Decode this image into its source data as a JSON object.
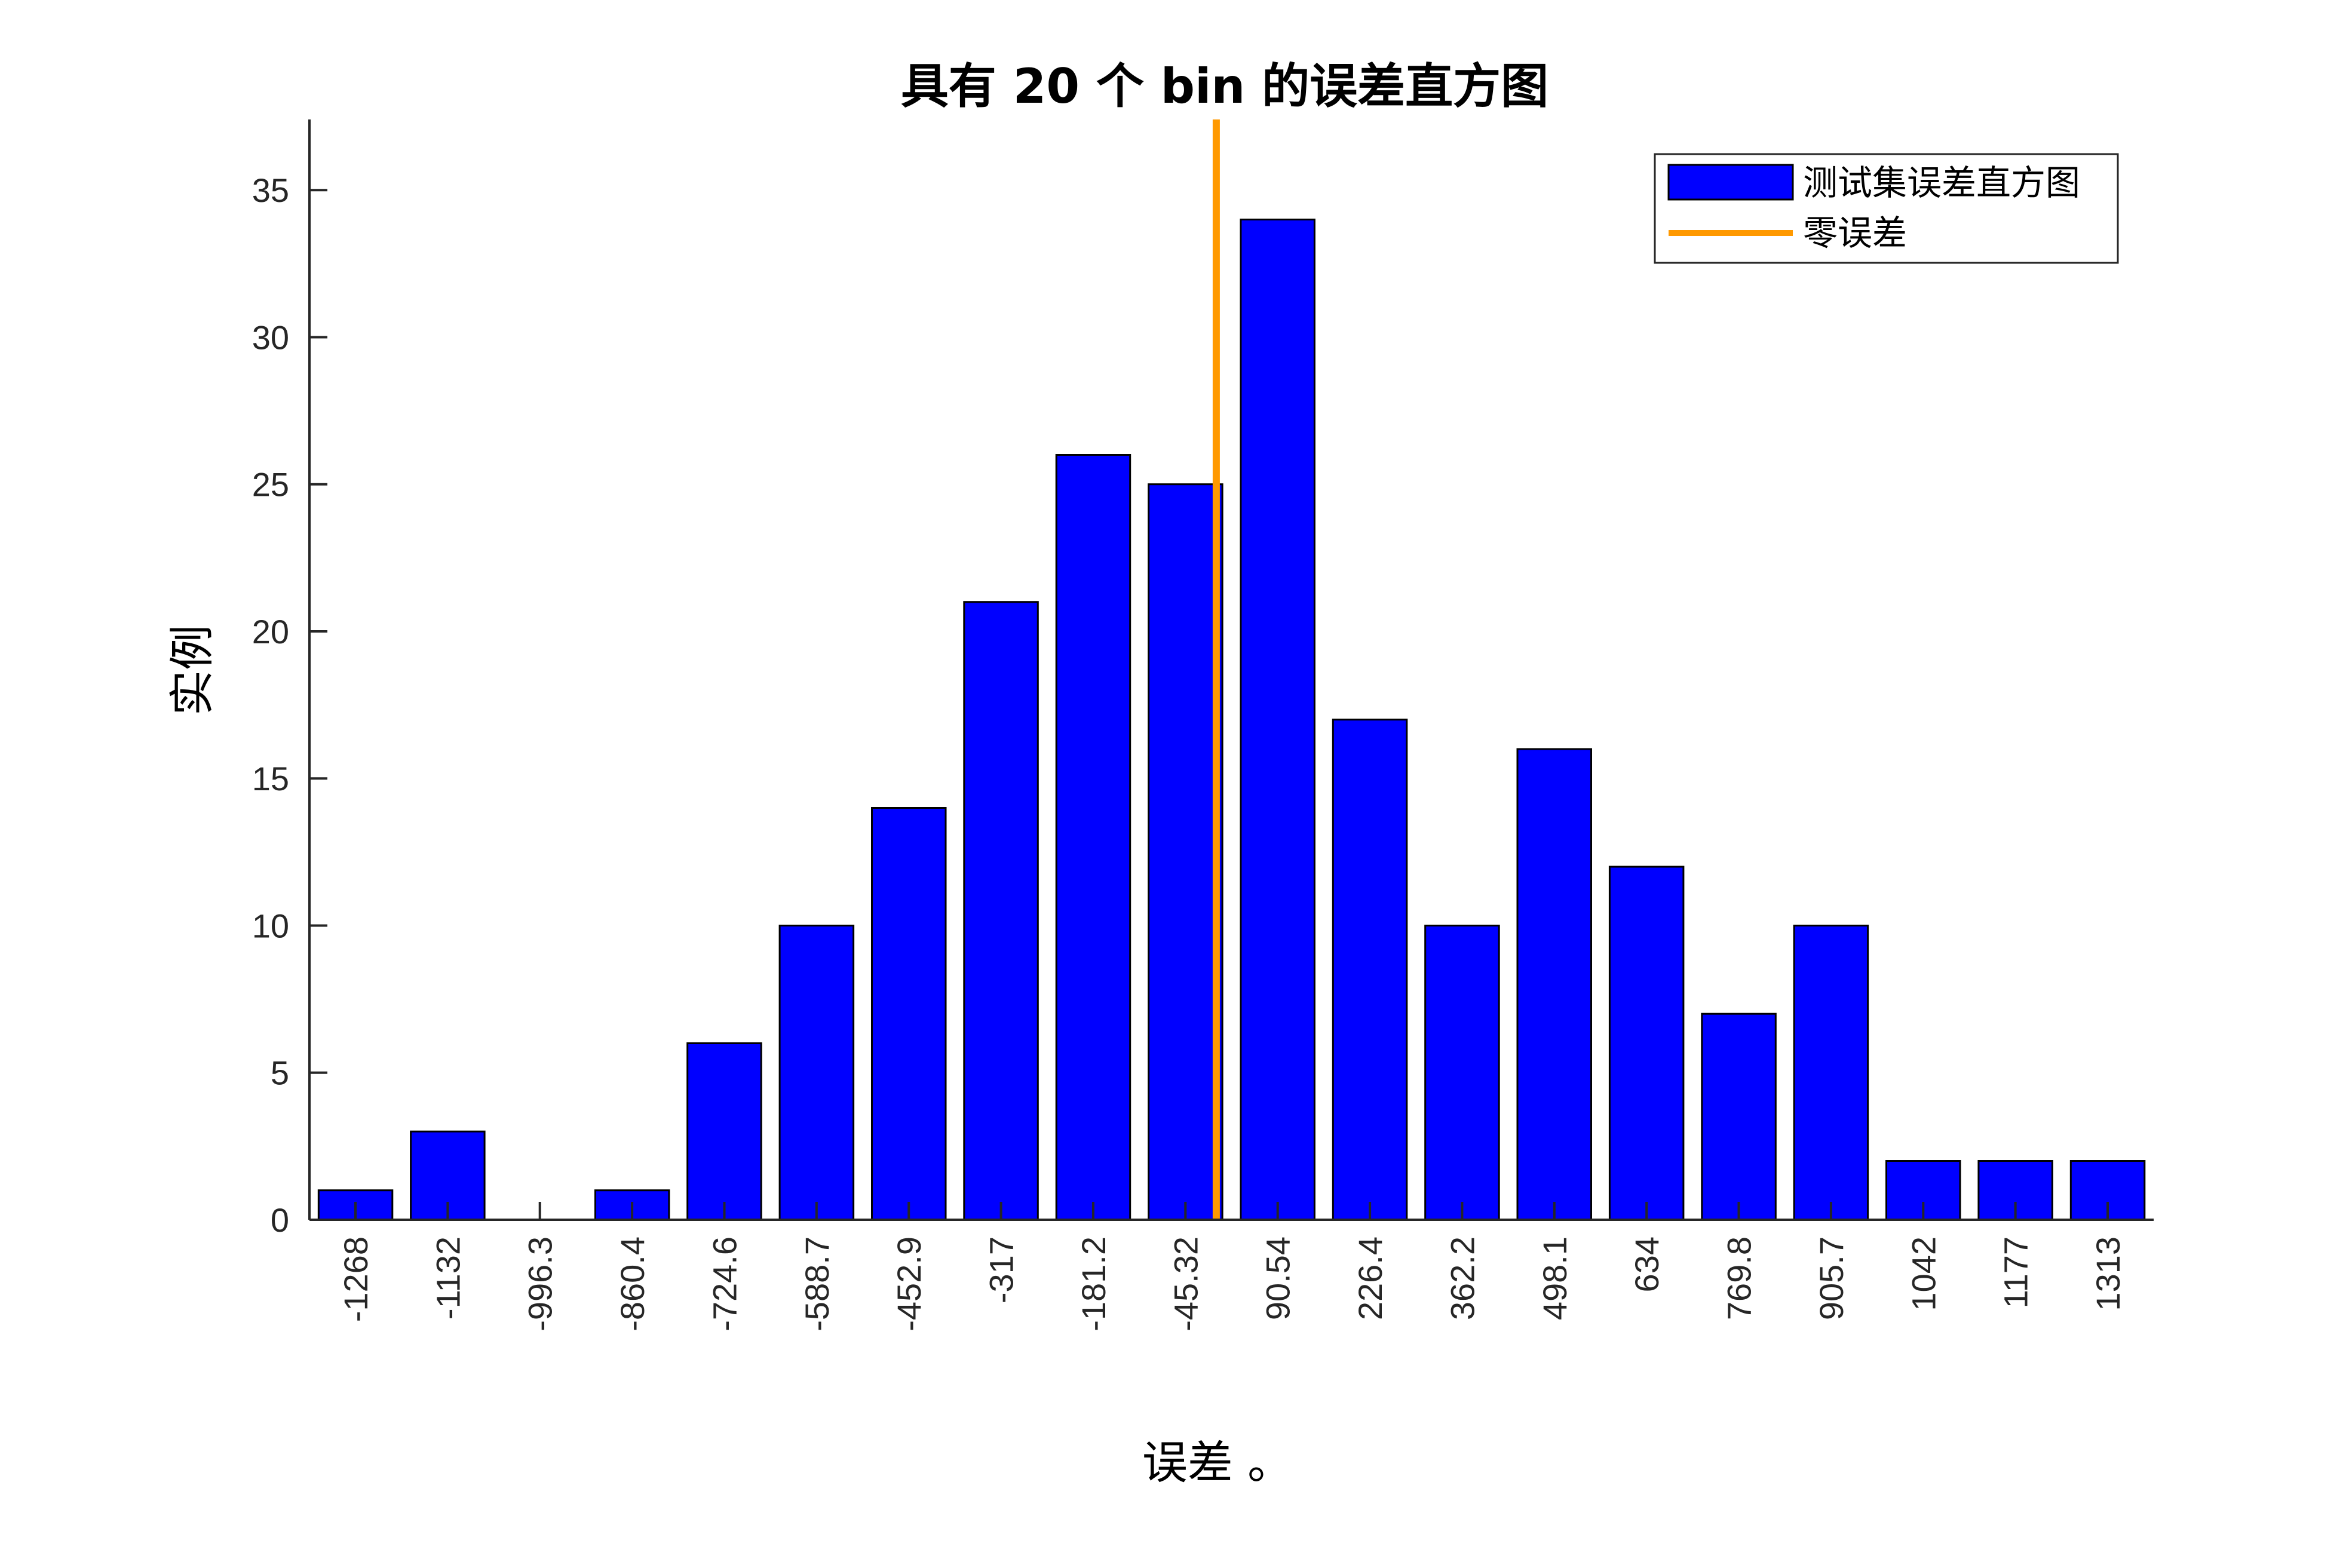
{
  "chart_data": {
    "type": "bar",
    "title": "具有 20 个 bin 的误差直方图",
    "xlabel": "误差 。",
    "ylabel": "实例",
    "categories": [
      "-1268",
      "-1132",
      "-996.3",
      "-860.4",
      "-724.6",
      "-588.7",
      "-452.9",
      "-317",
      "-181.2",
      "-45.32",
      "90.54",
      "226.4",
      "362.2",
      "498.1",
      "634",
      "769.8",
      "905.7",
      "1042",
      "1177",
      "1313"
    ],
    "series": [
      {
        "name": "测试集误差直方图",
        "values": [
          1,
          3,
          0,
          1,
          6,
          10,
          14,
          21,
          26,
          25,
          34,
          17,
          10,
          16,
          12,
          7,
          10,
          2,
          2,
          2
        ],
        "color": "#0000ff"
      }
    ],
    "reference_line": {
      "name": "零误差",
      "x": 0,
      "color": "#ff9900"
    },
    "ylim": [
      0,
      37.4
    ],
    "yticks": [
      0,
      5,
      10,
      15,
      20,
      25,
      30,
      35
    ],
    "grid": false,
    "legend_position": "top-right"
  }
}
